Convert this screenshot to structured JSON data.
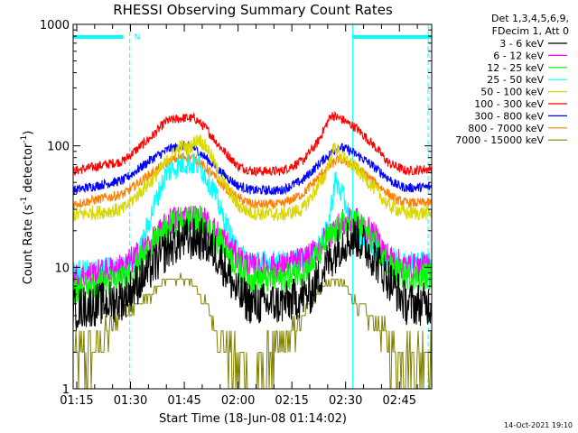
{
  "chart_data": {
    "type": "line",
    "title": "RHESSI Observing Summary Count Rates",
    "xlabel": "Start Time (18-Jun-08 01:14:02)",
    "ylabel_main": "Count Rate (s",
    "ylabel_sup1": "-1",
    "ylabel_mid": " detector",
    "ylabel_sup2": "-1",
    "ylabel_end": ")",
    "y_scale": "log",
    "ylim": [
      1,
      1000
    ],
    "xlim_minutes": [
      0,
      100
    ],
    "x_ticks": [
      {
        "label": "01:15",
        "t": 1
      },
      {
        "label": "01:30",
        "t": 16
      },
      {
        "label": "01:45",
        "t": 31
      },
      {
        "label": "02:00",
        "t": 46
      },
      {
        "label": "02:15",
        "t": 61
      },
      {
        "label": "02:30",
        "t": 76
      },
      {
        "label": "02:45",
        "t": 91
      }
    ],
    "y_ticks": [
      {
        "label": "1",
        "value": 1
      },
      {
        "label": "10",
        "value": 10
      },
      {
        "label": "100",
        "value": 100
      },
      {
        "label": "1000",
        "value": 1000
      }
    ],
    "legend_header": [
      "Det 1,3,4,5,6,9,",
      "FDecim 1, Att 0"
    ],
    "series": [
      {
        "name": "3 - 6 keV",
        "color": "#000000",
        "noise": 0.18,
        "points": [
          [
            0,
            4.5
          ],
          [
            14,
            5.5
          ],
          [
            22,
            10
          ],
          [
            27,
            15
          ],
          [
            31,
            17
          ],
          [
            36,
            17
          ],
          [
            41,
            12
          ],
          [
            46,
            6
          ],
          [
            50,
            5
          ],
          [
            58,
            5
          ],
          [
            66,
            6
          ],
          [
            71,
            11
          ],
          [
            75,
            16
          ],
          [
            79,
            18
          ],
          [
            84,
            12
          ],
          [
            88,
            8
          ],
          [
            93,
            5
          ],
          [
            100,
            5
          ]
        ]
      },
      {
        "name": "6 - 12 keV",
        "color": "#ff00ff",
        "noise": 0.12,
        "points": [
          [
            0,
            8
          ],
          [
            14,
            10
          ],
          [
            22,
            16
          ],
          [
            27,
            24
          ],
          [
            31,
            26
          ],
          [
            36,
            25
          ],
          [
            41,
            18
          ],
          [
            46,
            12
          ],
          [
            50,
            10
          ],
          [
            58,
            10
          ],
          [
            66,
            12
          ],
          [
            71,
            18
          ],
          [
            75,
            23
          ],
          [
            79,
            24
          ],
          [
            84,
            18
          ],
          [
            88,
            12
          ],
          [
            93,
            10
          ],
          [
            100,
            10
          ]
        ]
      },
      {
        "name": "12 - 25 keV",
        "color": "#00ff00",
        "noise": 0.12,
        "points": [
          [
            0,
            6.5
          ],
          [
            14,
            8
          ],
          [
            22,
            15
          ],
          [
            27,
            22
          ],
          [
            31,
            25
          ],
          [
            36,
            24
          ],
          [
            41,
            16
          ],
          [
            46,
            10
          ],
          [
            50,
            8
          ],
          [
            58,
            8
          ],
          [
            66,
            10
          ],
          [
            71,
            17
          ],
          [
            75,
            22
          ],
          [
            79,
            24
          ],
          [
            84,
            16
          ],
          [
            88,
            10
          ],
          [
            93,
            8.5
          ],
          [
            100,
            8.5
          ]
        ]
      },
      {
        "name": "25 - 50 keV",
        "color": "#00ffff",
        "noise": 0.1,
        "points": [
          [
            0,
            9
          ],
          [
            14,
            10
          ],
          [
            18,
            12
          ],
          [
            23,
            35
          ],
          [
            26,
            60
          ],
          [
            31,
            72
          ],
          [
            35,
            70
          ],
          [
            39,
            45
          ],
          [
            42,
            25
          ],
          [
            46,
            13
          ],
          [
            50,
            11
          ],
          [
            60,
            11
          ],
          [
            66,
            12
          ],
          [
            71,
            20
          ],
          [
            73,
            52
          ],
          [
            75,
            40
          ],
          [
            78,
            22
          ],
          [
            82,
            15
          ],
          [
            88,
            12
          ],
          [
            93,
            11
          ],
          [
            100,
            11
          ]
        ]
      },
      {
        "name": "50 - 100 keV",
        "color": "#d8d800",
        "noise": 0.06,
        "points": [
          [
            0,
            27
          ],
          [
            14,
            30
          ],
          [
            22,
            52
          ],
          [
            27,
            80
          ],
          [
            30,
            100
          ],
          [
            32,
            95
          ],
          [
            35,
            115
          ],
          [
            38,
            90
          ],
          [
            41,
            55
          ],
          [
            46,
            32
          ],
          [
            50,
            28
          ],
          [
            58,
            27
          ],
          [
            64,
            30
          ],
          [
            70,
            55
          ],
          [
            73,
            100
          ],
          [
            75,
            80
          ],
          [
            79,
            65
          ],
          [
            84,
            45
          ],
          [
            88,
            32
          ],
          [
            93,
            28
          ],
          [
            100,
            28
          ]
        ]
      },
      {
        "name": "100 - 300 keV",
        "color": "#ff0000",
        "noise": 0.04,
        "points": [
          [
            0,
            62
          ],
          [
            14,
            75
          ],
          [
            22,
            120
          ],
          [
            26,
            160
          ],
          [
            31,
            170
          ],
          [
            34,
            168
          ],
          [
            37,
            140
          ],
          [
            41,
            98
          ],
          [
            46,
            68
          ],
          [
            50,
            62
          ],
          [
            58,
            62
          ],
          [
            64,
            75
          ],
          [
            68,
            105
          ],
          [
            72,
            180
          ],
          [
            75,
            165
          ],
          [
            79,
            140
          ],
          [
            84,
            100
          ],
          [
            88,
            72
          ],
          [
            93,
            62
          ],
          [
            100,
            65
          ]
        ]
      },
      {
        "name": "300 - 800 keV",
        "color": "#0000ff",
        "noise": 0.04,
        "points": [
          [
            0,
            43
          ],
          [
            14,
            52
          ],
          [
            22,
            78
          ],
          [
            27,
            95
          ],
          [
            31,
            100
          ],
          [
            34,
            95
          ],
          [
            38,
            75
          ],
          [
            42,
            58
          ],
          [
            46,
            47
          ],
          [
            50,
            43
          ],
          [
            58,
            43
          ],
          [
            64,
            52
          ],
          [
            70,
            78
          ],
          [
            74,
            98
          ],
          [
            77,
            92
          ],
          [
            81,
            78
          ],
          [
            86,
            60
          ],
          [
            90,
            48
          ],
          [
            93,
            45
          ],
          [
            100,
            46
          ]
        ]
      },
      {
        "name": "800 - 7000 keV",
        "color": "#ff8000",
        "noise": 0.04,
        "points": [
          [
            0,
            33
          ],
          [
            14,
            40
          ],
          [
            22,
            60
          ],
          [
            27,
            75
          ],
          [
            31,
            82
          ],
          [
            34,
            78
          ],
          [
            38,
            62
          ],
          [
            42,
            46
          ],
          [
            46,
            37
          ],
          [
            50,
            33
          ],
          [
            58,
            33
          ],
          [
            64,
            40
          ],
          [
            70,
            62
          ],
          [
            74,
            78
          ],
          [
            77,
            72
          ],
          [
            81,
            60
          ],
          [
            86,
            45
          ],
          [
            90,
            36
          ],
          [
            93,
            34
          ],
          [
            100,
            34
          ]
        ]
      },
      {
        "name": "7000 - 15000 keV",
        "color": "#808000",
        "noise": 0.0,
        "points": [
          [
            0,
            2
          ],
          [
            6,
            2
          ],
          [
            10,
            3
          ],
          [
            14,
            4
          ],
          [
            18,
            5
          ],
          [
            22,
            6
          ],
          [
            26,
            8
          ],
          [
            31,
            8
          ],
          [
            34,
            7
          ],
          [
            37,
            5
          ],
          [
            40,
            3
          ],
          [
            43,
            2
          ],
          [
            47,
            1.5
          ],
          [
            50,
            1
          ],
          [
            52,
            1.5
          ],
          [
            57,
            2
          ],
          [
            62,
            3
          ],
          [
            66,
            5
          ],
          [
            70,
            7
          ],
          [
            73,
            8
          ],
          [
            76,
            7
          ],
          [
            79,
            5
          ],
          [
            82,
            4
          ],
          [
            86,
            3
          ],
          [
            89,
            2
          ],
          [
            93,
            2
          ],
          [
            100,
            2
          ]
        ]
      }
    ],
    "legend_placement": "right",
    "intervals": {
      "cyan_bars": [
        [
          0,
          14
        ],
        [
          78,
          100
        ]
      ],
      "bar_label": "N",
      "dashed_lines": [
        15.8,
        99
      ],
      "solid_lines": [
        78
      ]
    },
    "background_color": "#ffffff"
  },
  "timestamp": "14-Oct-2021 19:10"
}
